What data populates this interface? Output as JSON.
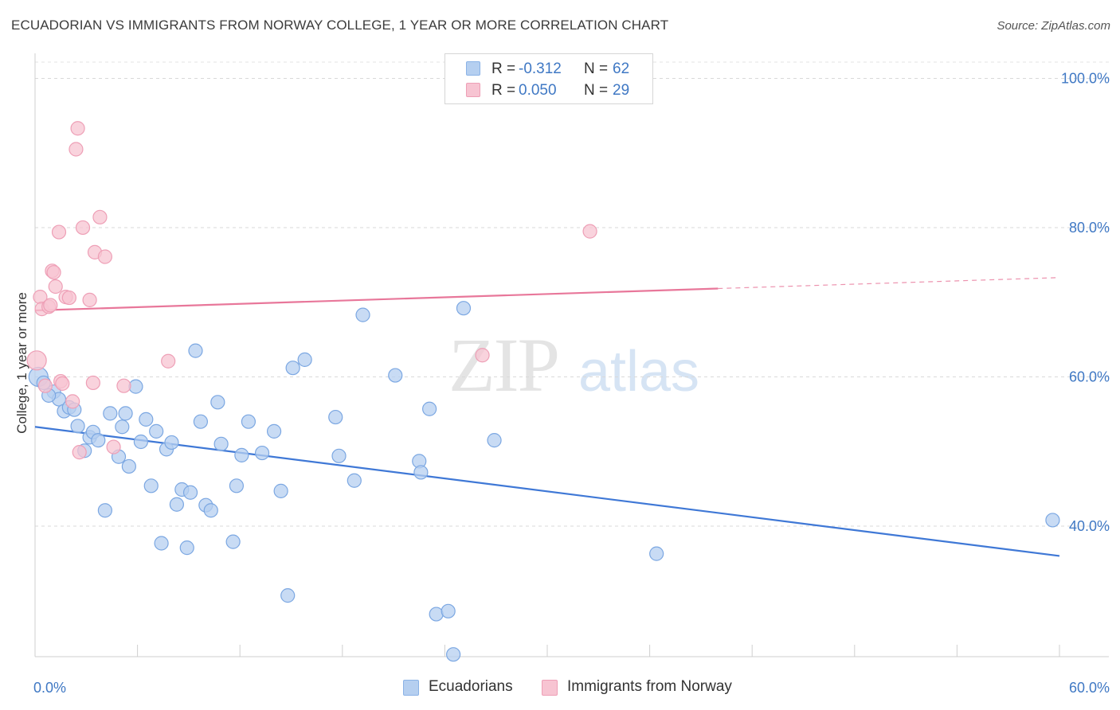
{
  "title": "ECUADORIAN VS IMMIGRANTS FROM NORWAY COLLEGE, 1 YEAR OR MORE CORRELATION CHART",
  "source": "Source: ZipAtlas.com",
  "watermark": {
    "part1": "ZIP",
    "part2": "atlas"
  },
  "legend": {
    "rows": [
      {
        "r_label": "R = ",
        "r_value": "-0.312",
        "n_label": "N = ",
        "n_value": "62",
        "fill": "#b5cff0",
        "stroke": "#8ab2e6"
      },
      {
        "r_label": "R = ",
        "r_value": "0.050",
        "n_label": "N = ",
        "n_value": "29",
        "fill": "#f7c4d2",
        "stroke": "#ee9fb6"
      }
    ]
  },
  "bottom_legend": [
    {
      "label": "Ecuadorians",
      "fill": "#b5cff0",
      "stroke": "#8ab2e6"
    },
    {
      "label": "Immigrants from Norway",
      "fill": "#f7c4d2",
      "stroke": "#ee9fb6"
    }
  ],
  "chart_data": {
    "type": "scatter",
    "ylabel": "College, 1 year or more",
    "xlim": [
      0,
      60
    ],
    "ylim": [
      22.5,
      102.5
    ],
    "x_tick_labels": [
      {
        "value": 0,
        "label": "0.0%"
      },
      {
        "value": 60,
        "label": "60.0%"
      }
    ],
    "y_tick_labels": [
      {
        "value": 100,
        "label": "100.0%"
      },
      {
        "value": 80,
        "label": "80.0%"
      },
      {
        "value": 60,
        "label": "60.0%"
      },
      {
        "value": 40,
        "label": "40.0%"
      }
    ],
    "grid": "horizontal dashed",
    "legend_position": "top-center",
    "series": [
      {
        "name": "Ecuadorians",
        "color": "#3f78d6",
        "marker_fill": "#b5cff0",
        "marker_stroke": "#7ba7e2",
        "trend": {
          "x": [
            0,
            60
          ],
          "y": [
            53.3,
            36.0
          ],
          "solid_to": 60
        },
        "points": [
          [
            0.2,
            60.0
          ],
          [
            0.5,
            59.2
          ],
          [
            1.1,
            58.0
          ],
          [
            1.4,
            57.0
          ],
          [
            1.7,
            55.4
          ],
          [
            2.0,
            55.9
          ],
          [
            2.3,
            55.6
          ],
          [
            2.5,
            53.4
          ],
          [
            2.9,
            50.1
          ],
          [
            3.2,
            51.9
          ],
          [
            3.4,
            52.6
          ],
          [
            3.7,
            51.5
          ],
          [
            4.1,
            42.1
          ],
          [
            4.4,
            55.1
          ],
          [
            4.9,
            49.3
          ],
          [
            5.1,
            53.3
          ],
          [
            5.3,
            55.1
          ],
          [
            5.5,
            48.0
          ],
          [
            5.9,
            58.7
          ],
          [
            6.2,
            51.3
          ],
          [
            6.5,
            54.3
          ],
          [
            6.8,
            45.4
          ],
          [
            7.1,
            52.7
          ],
          [
            7.4,
            37.7
          ],
          [
            7.7,
            50.3
          ],
          [
            8.0,
            51.2
          ],
          [
            8.3,
            42.9
          ],
          [
            8.6,
            44.9
          ],
          [
            8.9,
            37.1
          ],
          [
            9.1,
            44.5
          ],
          [
            9.4,
            63.5
          ],
          [
            9.7,
            54.0
          ],
          [
            10.0,
            42.8
          ],
          [
            10.3,
            42.1
          ],
          [
            10.7,
            56.6
          ],
          [
            10.9,
            51.0
          ],
          [
            11.6,
            37.9
          ],
          [
            11.8,
            45.4
          ],
          [
            12.1,
            49.5
          ],
          [
            12.5,
            54.0
          ],
          [
            13.3,
            49.8
          ],
          [
            14.0,
            52.7
          ],
          [
            14.4,
            44.7
          ],
          [
            14.8,
            30.7
          ],
          [
            15.1,
            61.2
          ],
          [
            15.8,
            62.3
          ],
          [
            17.6,
            54.6
          ],
          [
            17.8,
            49.4
          ],
          [
            18.7,
            46.1
          ],
          [
            19.2,
            68.3
          ],
          [
            21.1,
            60.2
          ],
          [
            22.5,
            48.7
          ],
          [
            22.6,
            47.2
          ],
          [
            23.1,
            55.7
          ],
          [
            23.5,
            28.2
          ],
          [
            24.2,
            28.6
          ],
          [
            24.5,
            22.8
          ],
          [
            25.1,
            69.2
          ],
          [
            26.9,
            51.5
          ],
          [
            36.4,
            36.3
          ],
          [
            59.6,
            40.8
          ],
          [
            0.8,
            57.5
          ]
        ]
      },
      {
        "name": "Immigrants from Norway",
        "color": "#e8779a",
        "marker_fill": "#f7c4d2",
        "marker_stroke": "#ee9fb6",
        "trend": {
          "x": [
            0,
            60
          ],
          "y": [
            68.9,
            73.3
          ],
          "solid_to": 40
        },
        "points": [
          [
            0.1,
            62.2
          ],
          [
            0.3,
            70.7
          ],
          [
            0.4,
            69.1
          ],
          [
            0.6,
            58.8
          ],
          [
            0.8,
            69.4
          ],
          [
            1.0,
            74.2
          ],
          [
            1.1,
            74.0
          ],
          [
            1.2,
            72.1
          ],
          [
            1.4,
            79.4
          ],
          [
            1.5,
            59.4
          ],
          [
            1.6,
            59.1
          ],
          [
            1.8,
            70.7
          ],
          [
            2.0,
            70.6
          ],
          [
            2.2,
            56.7
          ],
          [
            2.4,
            90.5
          ],
          [
            2.5,
            93.3
          ],
          [
            2.6,
            49.9
          ],
          [
            2.8,
            80.0
          ],
          [
            3.2,
            70.3
          ],
          [
            3.4,
            59.2
          ],
          [
            3.5,
            76.7
          ],
          [
            3.8,
            81.4
          ],
          [
            4.1,
            76.1
          ],
          [
            4.6,
            50.6
          ],
          [
            5.2,
            58.8
          ],
          [
            7.8,
            62.1
          ],
          [
            26.2,
            62.9
          ],
          [
            32.5,
            79.5
          ],
          [
            0.9,
            69.6
          ]
        ]
      }
    ]
  }
}
